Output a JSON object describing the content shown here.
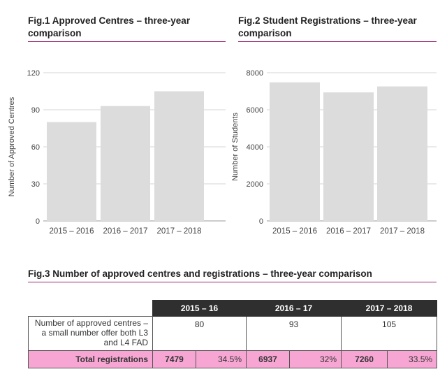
{
  "fig1": {
    "title_line1": "Fig.1 Approved Centres – three-year",
    "title_line2": "comparison"
  },
  "fig2": {
    "title_line1": "Fig.2 Student Registrations – three-year",
    "title_line2": "comparison"
  },
  "fig3": {
    "title": "Fig.3 Number of approved centres and registrations – three-year comparison"
  },
  "chart_data": [
    {
      "type": "bar",
      "title": "Fig.1 Approved Centres – three-year comparison",
      "categories": [
        "2015 – 2016",
        "2016 – 2017",
        "2017 – 2018"
      ],
      "values": [
        80,
        93,
        105
      ],
      "xlabel": "",
      "ylabel": "Number of Approved Centres",
      "ylim": [
        0,
        120
      ],
      "yticks": [
        0,
        30,
        60,
        90,
        120
      ],
      "bar_color": "#dcdcdc"
    },
    {
      "type": "bar",
      "title": "Fig.2 Student Registrations – three-year comparison",
      "categories": [
        "2015 – 2016",
        "2016 – 2017",
        "2017 – 2018"
      ],
      "values": [
        7479,
        6937,
        7260
      ],
      "xlabel": "",
      "ylabel": "Number of Students",
      "ylim": [
        0,
        8000
      ],
      "yticks": [
        0,
        2000,
        4000,
        6000,
        8000
      ],
      "bar_color": "#dcdcdc"
    },
    {
      "type": "table",
      "title": "Fig.3 Number of approved centres and registrations – three-year comparison",
      "columns": [
        "2015 – 16",
        "2016 – 17",
        "2017 – 2018"
      ],
      "rows": [
        {
          "label": "Number of approved centres – a small number offer both L3 and L4 FAD",
          "values": [
            "80",
            "93",
            "105"
          ]
        },
        {
          "label": "Total registrations",
          "values": [
            {
              "count": "7479",
              "pct": "34.5%"
            },
            {
              "count": "6937",
              "pct": "32%"
            },
            {
              "count": "7260",
              "pct": "33.5%"
            }
          ]
        }
      ]
    }
  ],
  "colors": {
    "accent_rule": "#9c2a75",
    "header_bg": "#2f2f2f",
    "total_row_bg": "#f7a6d3",
    "bar_fill": "#dcdcdc"
  }
}
